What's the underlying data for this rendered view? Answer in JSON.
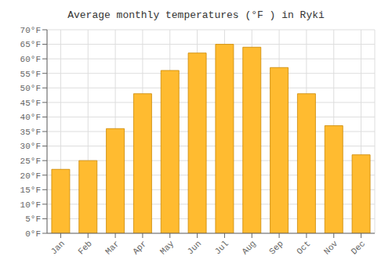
{
  "chart_data": {
    "type": "bar",
    "title": "Average monthly temperatures (°F ) in Ryki",
    "categories": [
      "Jan",
      "Feb",
      "Mar",
      "Apr",
      "May",
      "Jun",
      "Jul",
      "Aug",
      "Sep",
      "Oct",
      "Nov",
      "Dec"
    ],
    "values": [
      22,
      25,
      36,
      48,
      56,
      62,
      65,
      64,
      57,
      48,
      37,
      27
    ],
    "color": "#FFBB30",
    "ylim": [
      0,
      70
    ],
    "yticks": [
      {
        "value": 0,
        "label": "0°F"
      },
      {
        "value": 5,
        "label": "5°F"
      },
      {
        "value": 10,
        "label": "10°F"
      },
      {
        "value": 15,
        "label": "15°F"
      },
      {
        "value": 20,
        "label": "20°F"
      },
      {
        "value": 25,
        "label": "25°F"
      },
      {
        "value": 30,
        "label": "30°F"
      },
      {
        "value": 35,
        "label": "35°F"
      },
      {
        "value": 40,
        "label": "40°F"
      },
      {
        "value": 45,
        "label": "45°F"
      },
      {
        "value": 50,
        "label": "50°F"
      },
      {
        "value": 55,
        "label": "55°F"
      },
      {
        "value": 60,
        "label": "60°F"
      },
      {
        "value": 65,
        "label": "65°F"
      },
      {
        "value": 70,
        "label": "70°F"
      }
    ],
    "grid": true
  }
}
